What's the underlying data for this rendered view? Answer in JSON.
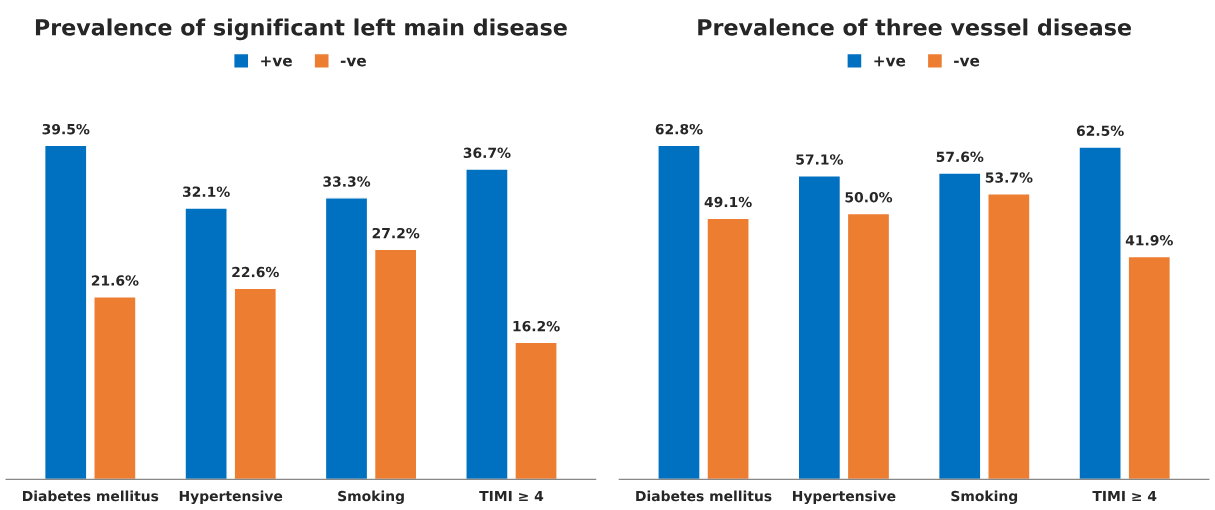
{
  "chart_data": [
    {
      "type": "bar",
      "title": "Prevalence of significant left main disease",
      "categories": [
        "Diabetes mellitus",
        "Hypertensive",
        "Smoking",
        "TIMI ≥ 4"
      ],
      "legend": "top",
      "series": [
        {
          "name": "+ve",
          "color": "#0070c0",
          "values": [
            39.5,
            32.1,
            33.3,
            36.7
          ],
          "value_labels": [
            "39.5%",
            "32.1%",
            "33.3%",
            "36.7%"
          ]
        },
        {
          "name": "-ve",
          "color": "#ed7d31",
          "values": [
            21.6,
            22.6,
            27.2,
            16.2
          ],
          "value_labels": [
            "21.6%",
            "22.6%",
            "27.2%",
            "16.2%"
          ]
        }
      ]
    },
    {
      "type": "bar",
      "title": "Prevalence of three vessel disease",
      "categories": [
        "Diabetes mellitus",
        "Hypertensive",
        "Smoking",
        "TIMI ≥ 4"
      ],
      "legend": "top",
      "series": [
        {
          "name": "+ve",
          "color": "#0070c0",
          "values": [
            62.8,
            57.1,
            57.6,
            62.5
          ],
          "value_labels": [
            "62.8%",
            "57.1%",
            "57.6%",
            "62.5%"
          ]
        },
        {
          "name": "-ve",
          "color": "#ed7d31",
          "values": [
            49.1,
            50.0,
            53.7,
            41.9
          ],
          "value_labels": [
            "49.1%",
            "50.0%",
            "53.7%",
            "41.9%"
          ]
        }
      ]
    }
  ]
}
